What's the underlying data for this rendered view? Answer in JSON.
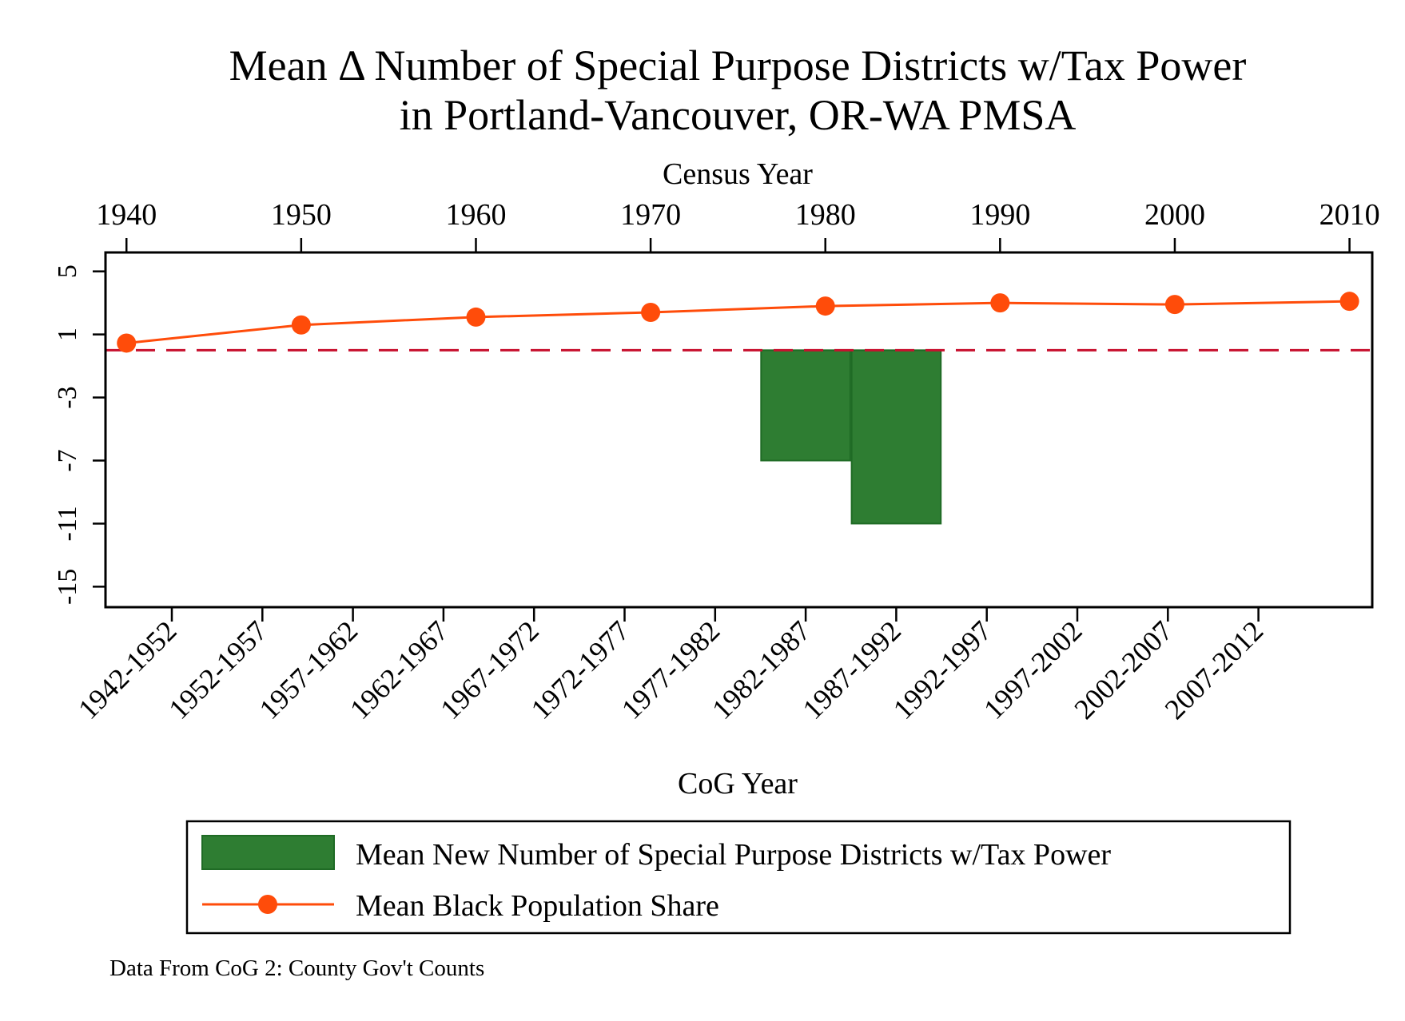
{
  "chart_data": {
    "type": "bar",
    "title_lines": [
      "Mean Δ Number of Special Purpose Districts w/Tax Power",
      "in Portland-Vancouver, OR-WA PMSA"
    ],
    "top_axis": {
      "label": "Census Year",
      "ticks": [
        "1940",
        "1950",
        "1960",
        "1970",
        "1980",
        "1990",
        "2000",
        "2010"
      ],
      "range": [
        1938.8,
        2011.3
      ]
    },
    "bottom_axis": {
      "label": "CoG Year",
      "categories": [
        "1942-1952",
        "1952-1957",
        "1957-1962",
        "1962-1967",
        "1967-1972",
        "1972-1977",
        "1977-1982",
        "1982-1987",
        "1987-1992",
        "1992-1997",
        "1997-2002",
        "2002-2007",
        "2007-2012"
      ]
    },
    "y_axis": {
      "ticks": [
        5,
        1,
        -3,
        -7,
        -11,
        -15
      ],
      "tick_labels": [
        "5",
        "1",
        "-3",
        "-7",
        "-11",
        "-15"
      ],
      "range": [
        -16.3,
        6.2
      ]
    },
    "reference_line": {
      "y": 0,
      "style": "dashed",
      "color": "#c8102e"
    },
    "bar_series": {
      "name": "Mean New Number of Special Purpose Districts w/Tax Power",
      "color": "#2e7d32",
      "values": [
        0,
        0,
        0,
        0,
        0,
        0,
        0,
        -7,
        -11,
        0,
        0,
        0,
        0
      ]
    },
    "line_series": {
      "name": "Mean Black Population Share",
      "color": "#ff4c0a",
      "x": [
        1940,
        1950,
        1960,
        1970,
        1980,
        1990,
        2000,
        2010
      ],
      "values": [
        0.45,
        1.6,
        2.1,
        2.4,
        2.8,
        3.0,
        2.9,
        3.1
      ]
    },
    "note": "Data From CoG 2: County Gov't Counts",
    "grid": false,
    "legend_position": "bottom"
  }
}
